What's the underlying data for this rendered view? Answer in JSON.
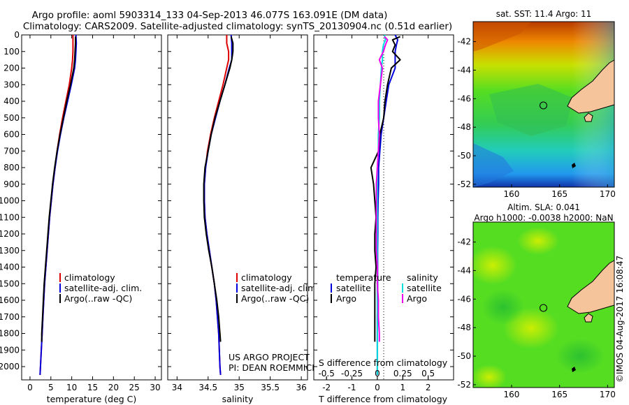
{
  "header": {
    "line1": "Argo profile: aoml 5903314_133 04-Sep-2013 46.077S 163.091E (DM data)",
    "line2": "Climatology: CARS2009. Satellite-adjusted climatology: synTS_20130904.nc (0.51d earlier)"
  },
  "colors": {
    "climatology": "#dd0000",
    "satellite": "#0000dd",
    "argo": "#000000",
    "salinity_satellite": "#00dddd",
    "salinity_argo": "#ee00ee"
  },
  "project_note": {
    "line1": "US ARGO PROJECT",
    "line2": "PI: DEAN ROEMMICH"
  },
  "stamp": "©IMOS 04-Aug-2017 16:08:47",
  "chart_data": [
    {
      "type": "line",
      "name": "temperature-profile",
      "xlabel": "temperature (deg C)",
      "xlim": [
        -2,
        31.5
      ],
      "ylim": [
        2080,
        0
      ],
      "xticks": [
        "0",
        "5",
        "10",
        "15",
        "20",
        "25",
        "30"
      ],
      "xtick_values": [
        0,
        5,
        10,
        15,
        20,
        25,
        30
      ],
      "yticks": [
        "0",
        "100",
        "200",
        "300",
        "400",
        "500",
        "600",
        "700",
        "800",
        "900",
        "1000",
        "1100",
        "1200",
        "1300",
        "1400",
        "1500",
        "1600",
        "1700",
        "1800",
        "1900",
        "2000"
      ],
      "ytick_values": [
        0,
        100,
        200,
        300,
        400,
        500,
        600,
        700,
        800,
        900,
        1000,
        1100,
        1200,
        1300,
        1400,
        1500,
        1600,
        1700,
        1800,
        1900,
        2000
      ],
      "legend": [
        "climatology",
        "satellite-adj. clim.",
        "Argo(..raw -QC)"
      ],
      "series": [
        {
          "name": "climatology",
          "depth": [
            0,
            50,
            100,
            150,
            200,
            300,
            400,
            500,
            600,
            700,
            800,
            900,
            1000,
            1100,
            1200,
            1300,
            1400,
            1500,
            1600,
            1700,
            1800,
            1900,
            2000,
            2050
          ],
          "values": [
            10.3,
            10.3,
            10.3,
            10.2,
            10.0,
            9.4,
            8.6,
            7.8,
            7.1,
            6.5,
            6.0,
            5.5,
            5.1,
            4.7,
            4.4,
            4.1,
            3.8,
            3.5,
            3.3,
            3.1,
            2.9,
            2.7,
            2.5,
            2.4
          ]
        },
        {
          "name": "satellite-adj. clim.",
          "depth": [
            0,
            50,
            100,
            150,
            200,
            300,
            400,
            500,
            600,
            700,
            800,
            900,
            1000,
            1100,
            1200,
            1300,
            1400,
            1500,
            1600,
            1700,
            1800,
            1900,
            2000,
            2050
          ],
          "values": [
            11.0,
            11.1,
            11.0,
            10.9,
            10.7,
            9.9,
            9.0,
            8.1,
            7.3,
            6.6,
            6.0,
            5.5,
            5.1,
            4.7,
            4.4,
            4.1,
            3.8,
            3.5,
            3.3,
            3.1,
            2.9,
            2.7,
            2.5,
            2.4
          ]
        },
        {
          "name": "Argo(..raw -QC)",
          "depth": [
            10,
            50,
            100,
            150,
            200,
            300,
            400,
            500,
            600,
            700,
            800,
            900,
            1000,
            1100,
            1200,
            1300,
            1400,
            1500,
            1600,
            1700,
            1800,
            1850
          ],
          "values": [
            10.9,
            10.9,
            10.8,
            10.7,
            10.5,
            9.7,
            8.8,
            8.0,
            7.2,
            6.5,
            5.9,
            5.4,
            5.0,
            4.6,
            4.3,
            4.0,
            3.7,
            3.4,
            3.2,
            3.0,
            2.8,
            2.8
          ]
        }
      ]
    },
    {
      "type": "line",
      "name": "salinity-profile",
      "xlabel": "salinity",
      "xlim": [
        33.85,
        36.1
      ],
      "ylim": [
        2080,
        0
      ],
      "xticks": [
        "34",
        "34.5",
        "35",
        "35.5",
        "36"
      ],
      "xtick_values": [
        34,
        34.5,
        35,
        35.5,
        36
      ],
      "legend": [
        "climatology",
        "satellite-adj. clim.",
        "Argo(..raw -QC)"
      ],
      "series": [
        {
          "name": "climatology",
          "depth": [
            0,
            50,
            100,
            150,
            200,
            300,
            400,
            500,
            600,
            700,
            800,
            900,
            1000,
            1100,
            1200,
            1300,
            1400,
            1500,
            1600,
            1700,
            1800,
            1900,
            2000,
            2050
          ],
          "values": [
            34.8,
            34.8,
            34.83,
            34.83,
            34.8,
            34.74,
            34.67,
            34.6,
            34.54,
            34.49,
            34.46,
            34.44,
            34.44,
            34.45,
            34.48,
            34.52,
            34.56,
            34.6,
            34.63,
            34.65,
            34.67,
            34.68,
            34.69,
            34.7
          ]
        },
        {
          "name": "satellite-adj. clim.",
          "depth": [
            0,
            50,
            100,
            150,
            200,
            300,
            400,
            500,
            600,
            700,
            800,
            900,
            1000,
            1100,
            1200,
            1300,
            1400,
            1500,
            1600,
            1700,
            1800,
            1900,
            2000,
            2050
          ],
          "values": [
            34.87,
            34.88,
            34.88,
            34.88,
            34.84,
            34.77,
            34.69,
            34.62,
            34.55,
            34.5,
            34.46,
            34.44,
            34.44,
            34.45,
            34.48,
            34.52,
            34.56,
            34.6,
            34.63,
            34.65,
            34.67,
            34.68,
            34.69,
            34.7
          ]
        },
        {
          "name": "Argo(..raw -QC)",
          "depth": [
            10,
            50,
            100,
            150,
            200,
            300,
            400,
            500,
            600,
            700,
            800,
            900,
            1000,
            1100,
            1200,
            1300,
            1400,
            1500,
            1600,
            1700,
            1800,
            1850
          ],
          "values": [
            34.87,
            34.9,
            34.9,
            34.88,
            34.85,
            34.77,
            34.69,
            34.61,
            34.55,
            34.5,
            34.45,
            34.43,
            34.43,
            34.44,
            34.47,
            34.51,
            34.56,
            34.6,
            34.64,
            34.67,
            34.69,
            34.7
          ]
        }
      ]
    },
    {
      "type": "line",
      "name": "difference-profile",
      "xlabel": "T difference from climatology",
      "top_label": "S difference from climatology",
      "t_xlim": [
        -2.5,
        3.0
      ],
      "s_xlim": [
        -0.625,
        0.75
      ],
      "t_xticks": [
        "-2",
        "-1",
        "0",
        "1",
        "2"
      ],
      "t_xtick_values": [
        -2,
        -1,
        0,
        1,
        2
      ],
      "s_xticks": [
        "-0.5",
        "-0.25",
        "0",
        "0.25",
        "0.5"
      ],
      "s_xtick_values": [
        -0.5,
        -0.25,
        0,
        0.25,
        0.5
      ],
      "legend_temperature_title": "temperature",
      "legend_salinity_title": "salinity",
      "legend_temperature": [
        "satellite",
        "Argo"
      ],
      "legend_salinity": [
        "satellite",
        "Argo"
      ],
      "series": [
        {
          "name": "temperature satellite",
          "depth": [
            0,
            30,
            60,
            100,
            150,
            200,
            300,
            400,
            500,
            600,
            700,
            800,
            900,
            1000,
            1100,
            1200,
            1300,
            1400,
            1500,
            1600,
            1700,
            1800,
            1900,
            2000,
            2050
          ],
          "values": [
            0.7,
            0.8,
            0.75,
            0.7,
            0.7,
            0.7,
            0.45,
            0.35,
            0.25,
            0.15,
            0.1,
            0.05,
            0.05,
            0.03,
            0.02,
            0.02,
            0.01,
            0.01,
            0.01,
            0.01,
            0.0,
            0.0,
            0.0,
            0.0,
            0.0
          ]
        },
        {
          "name": "temperature Argo",
          "depth": [
            10,
            30,
            60,
            100,
            150,
            200,
            300,
            400,
            500,
            600,
            700,
            800,
            900,
            1000,
            1100,
            1200,
            1300,
            1400,
            1500,
            1600,
            1700,
            1800,
            1850
          ],
          "values": [
            0.9,
            0.6,
            0.7,
            0.6,
            0.9,
            0.55,
            0.4,
            0.3,
            0.25,
            0.1,
            0.05,
            -0.25,
            -0.15,
            -0.1,
            -0.05,
            -0.1,
            -0.1,
            -0.05,
            -0.1,
            -0.1,
            -0.1,
            -0.1,
            -0.1
          ]
        },
        {
          "name": "salinity satellite",
          "depth": [
            0,
            30,
            60,
            100,
            150,
            200,
            300,
            400,
            500,
            600,
            700,
            800,
            900,
            1000,
            1100,
            1200,
            1300,
            1400,
            1500,
            1600,
            1700,
            1800,
            1900,
            2000,
            2050
          ],
          "values": [
            0.07,
            0.08,
            0.06,
            0.05,
            0.05,
            0.04,
            0.03,
            0.02,
            0.02,
            0.01,
            0.01,
            0.0,
            0.0,
            0.0,
            0.0,
            0.0,
            0.0,
            0.0,
            0.0,
            0.0,
            0.0,
            0.0,
            0.0,
            0.0,
            0.0
          ]
        },
        {
          "name": "salinity Argo",
          "depth": [
            10,
            30,
            60,
            100,
            150,
            200,
            300,
            400,
            500,
            600,
            700,
            800,
            900,
            1000,
            1100,
            1200,
            1300,
            1400,
            1500,
            1600,
            1700,
            1800,
            1850
          ],
          "values": [
            0.07,
            0.1,
            0.08,
            0.06,
            0.02,
            0.05,
            0.03,
            0.01,
            0.01,
            0.02,
            0.01,
            0.0,
            -0.01,
            -0.01,
            -0.01,
            -0.01,
            -0.01,
            0.0,
            0.0,
            0.01,
            0.01,
            0.02,
            0.02
          ]
        }
      ]
    },
    {
      "type": "heatmap",
      "name": "sst-map",
      "title": "sat. SST: 11.4  Argo: 11",
      "xlim": [
        156,
        170.7
      ],
      "ylim": [
        -52.2,
        -40.6
      ],
      "xticks": [
        "160",
        "165",
        "170"
      ],
      "xtick_values": [
        160,
        165,
        170
      ],
      "yticks": [
        "-42",
        "-44",
        "-46",
        "-48",
        "-50",
        "-52"
      ],
      "ytick_values": [
        -42,
        -44,
        -46,
        -48,
        -50,
        -52
      ],
      "profile_location": [
        163.091,
        -46.077
      ]
    },
    {
      "type": "heatmap",
      "name": "sla-map",
      "title_line1": "Altim. SLA: 0.041",
      "title_line2": "Argo h1000: -0.0038 h2000: NaN",
      "xlim": [
        156,
        170.7
      ],
      "ylim": [
        -52.2,
        -40.6
      ],
      "xticks": [
        "160",
        "165",
        "170"
      ],
      "xtick_values": [
        160,
        165,
        170
      ],
      "yticks": [
        "-42",
        "-44",
        "-46",
        "-48",
        "-50",
        "-52"
      ],
      "ytick_values": [
        -42,
        -44,
        -46,
        -48,
        -50,
        -52
      ],
      "profile_location": [
        163.091,
        -46.077
      ]
    }
  ]
}
